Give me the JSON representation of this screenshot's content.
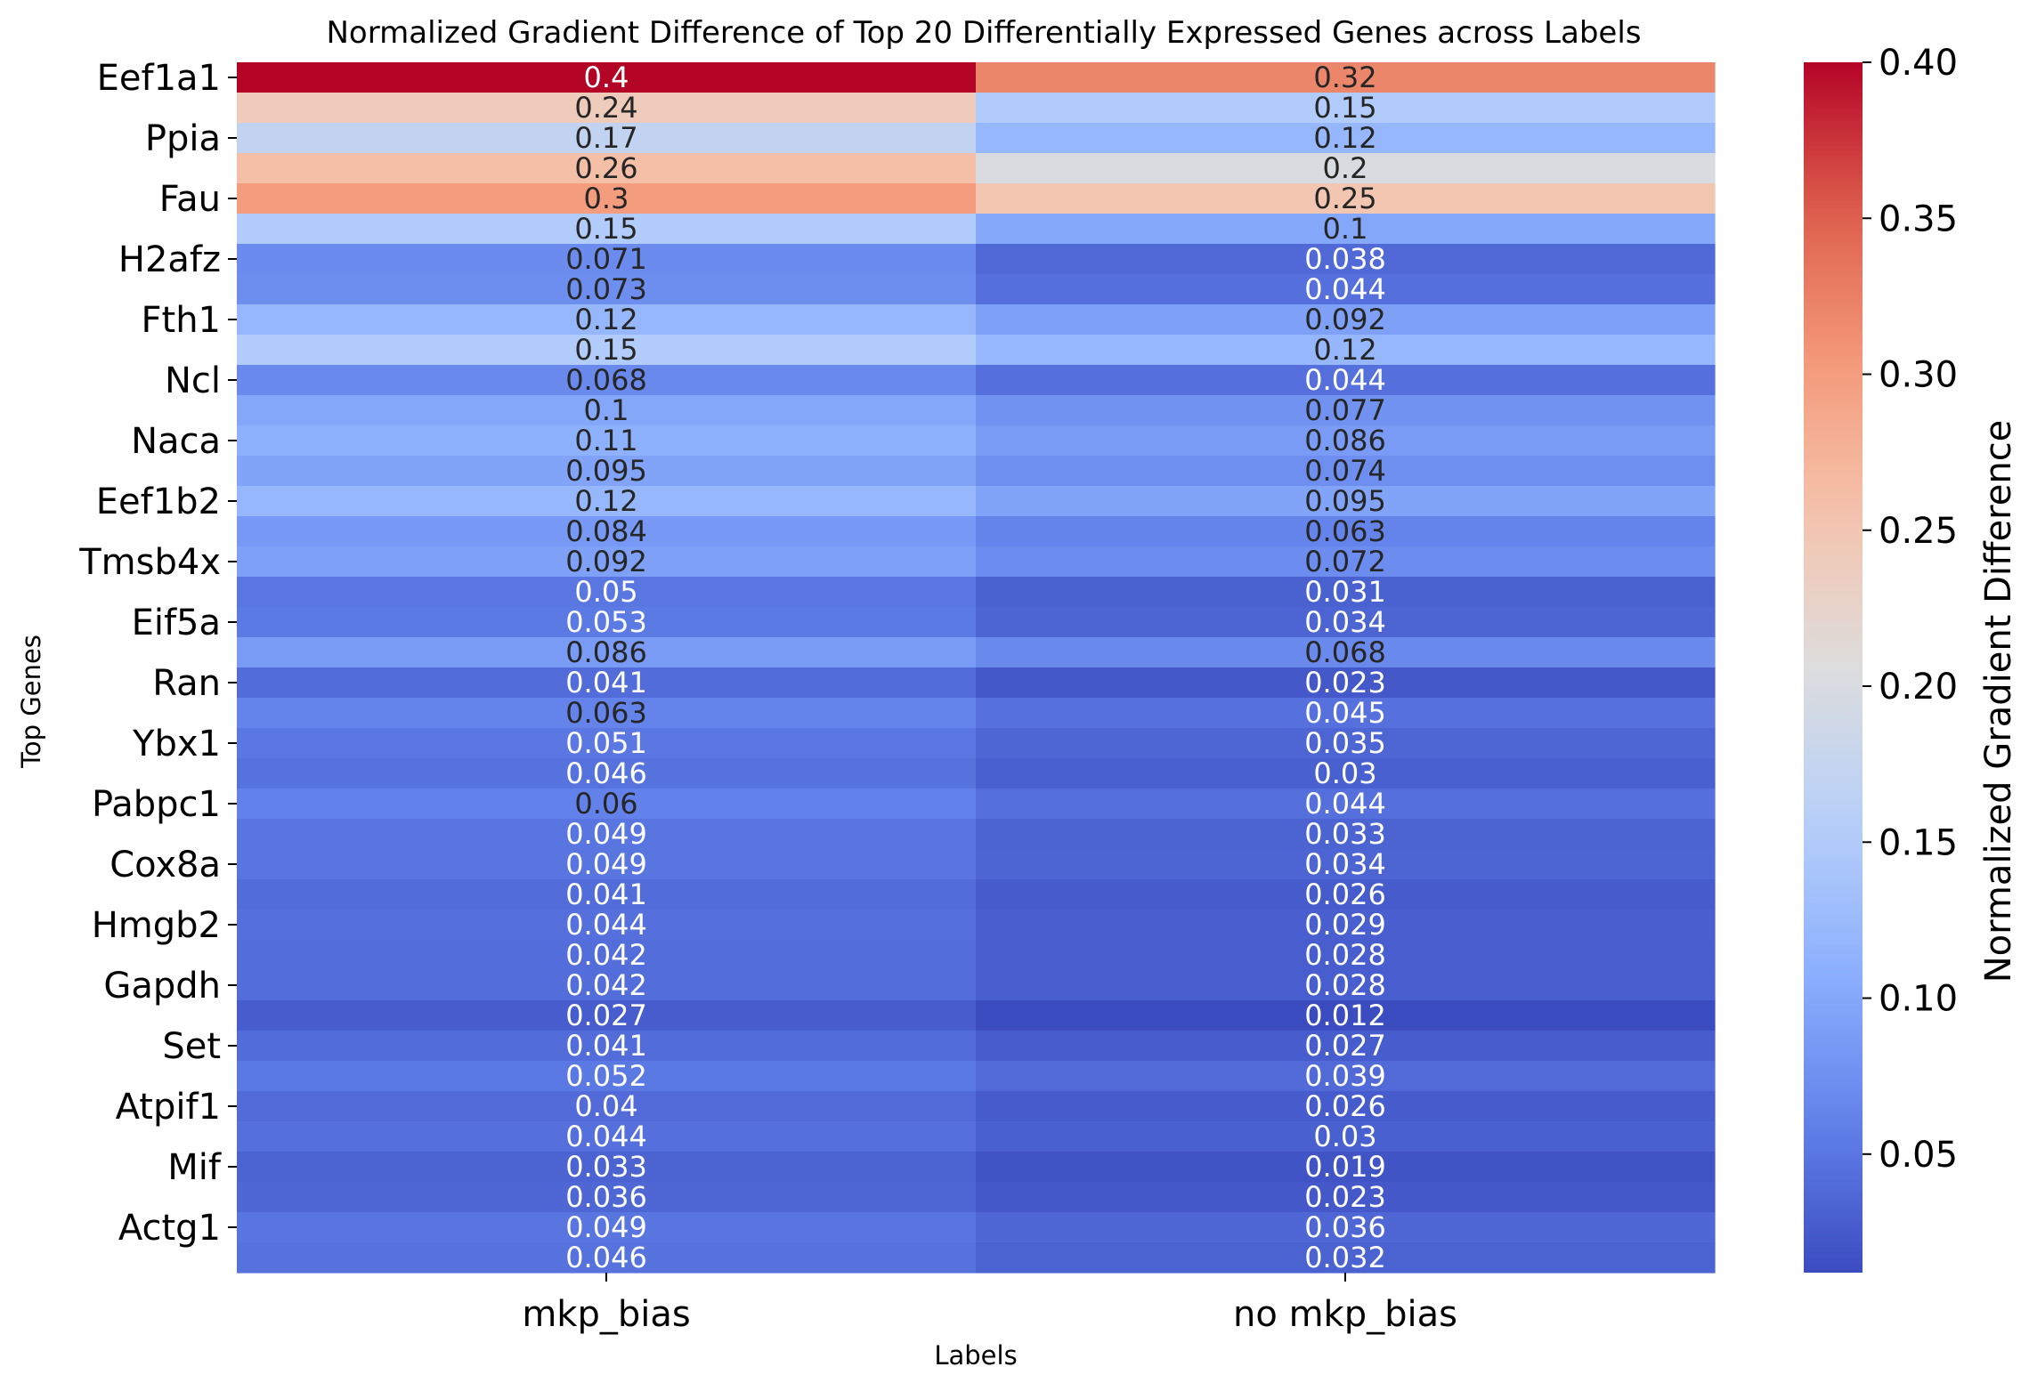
{
  "chart_data": {
    "type": "heatmap",
    "title": "Normalized Gradient Difference of Top 20 Differentially Expressed Genes across Labels",
    "xlabel": "Labels",
    "ylabel": "Top Genes",
    "columns": [
      "mkp_bias",
      "no mkp_bias"
    ],
    "y_tick_labels": [
      "Eef1a1",
      "Ppia",
      "Fau",
      "H2afz",
      "Fth1",
      "Ncl",
      "Naca",
      "Eef1b2",
      "Tmsb4x",
      "Eif5a",
      "Ran",
      "Ybx1",
      "Pabpc1",
      "Cox8a",
      "Hmgb2",
      "Gapdh",
      "Set",
      "Atpif1",
      "Mif",
      "Actg1"
    ],
    "row_count": 40,
    "values": [
      [
        0.4,
        0.32
      ],
      [
        0.24,
        0.15
      ],
      [
        0.17,
        0.12
      ],
      [
        0.26,
        0.2
      ],
      [
        0.3,
        0.25
      ],
      [
        0.15,
        0.1
      ],
      [
        0.071,
        0.038
      ],
      [
        0.073,
        0.044
      ],
      [
        0.12,
        0.092
      ],
      [
        0.15,
        0.12
      ],
      [
        0.068,
        0.044
      ],
      [
        0.1,
        0.077
      ],
      [
        0.11,
        0.086
      ],
      [
        0.095,
        0.074
      ],
      [
        0.12,
        0.095
      ],
      [
        0.084,
        0.063
      ],
      [
        0.092,
        0.072
      ],
      [
        0.05,
        0.031
      ],
      [
        0.053,
        0.034
      ],
      [
        0.086,
        0.068
      ],
      [
        0.041,
        0.023
      ],
      [
        0.063,
        0.045
      ],
      [
        0.051,
        0.035
      ],
      [
        0.046,
        0.03
      ],
      [
        0.06,
        0.044
      ],
      [
        0.049,
        0.033
      ],
      [
        0.049,
        0.034
      ],
      [
        0.041,
        0.026
      ],
      [
        0.044,
        0.029
      ],
      [
        0.042,
        0.028
      ],
      [
        0.042,
        0.028
      ],
      [
        0.027,
        0.012
      ],
      [
        0.041,
        0.027
      ],
      [
        0.052,
        0.039
      ],
      [
        0.04,
        0.026
      ],
      [
        0.044,
        0.03
      ],
      [
        0.033,
        0.019
      ],
      [
        0.036,
        0.023
      ],
      [
        0.049,
        0.036
      ],
      [
        0.046,
        0.032
      ]
    ],
    "colormap": "coolwarm",
    "vmin": 0.012,
    "vmax": 0.4,
    "colorbar": {
      "label": "Normalized Gradient Difference",
      "ticks": [
        "0.05",
        "0.10",
        "0.15",
        "0.20",
        "0.25",
        "0.30",
        "0.35",
        "0.40"
      ],
      "tick_values": [
        0.05,
        0.1,
        0.15,
        0.2,
        0.25,
        0.3,
        0.35,
        0.4
      ]
    }
  }
}
